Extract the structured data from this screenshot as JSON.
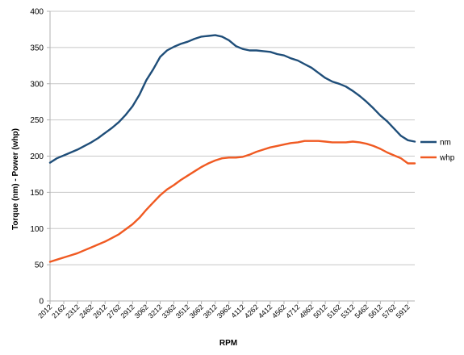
{
  "chart_data": {
    "type": "line",
    "title": "",
    "xlabel": "RPM",
    "ylabel": "Torque (nm) - Power (whp)",
    "ylim": [
      0,
      400
    ],
    "yticks": [
      0,
      50,
      100,
      150,
      200,
      250,
      300,
      350,
      400
    ],
    "grid": "horizontal",
    "legend_position": "right",
    "x_tick_labels": [
      2012,
      2162,
      2312,
      2462,
      2612,
      2762,
      2912,
      3062,
      3212,
      3362,
      3512,
      3662,
      3812,
      3962,
      4112,
      4262,
      4412,
      4562,
      4712,
      4862,
      5012,
      5162,
      5312,
      5462,
      5612,
      5762,
      5912
    ],
    "x": [
      2012,
      2087,
      2162,
      2237,
      2312,
      2387,
      2462,
      2537,
      2612,
      2687,
      2762,
      2837,
      2912,
      2987,
      3062,
      3137,
      3212,
      3287,
      3362,
      3437,
      3512,
      3587,
      3662,
      3737,
      3812,
      3887,
      3962,
      4037,
      4112,
      4187,
      4262,
      4337,
      4412,
      4487,
      4562,
      4637,
      4712,
      4787,
      4862,
      4937,
      5012,
      5087,
      5162,
      5237,
      5312,
      5387,
      5462,
      5537,
      5612,
      5687,
      5762,
      5837,
      5912,
      5987
    ],
    "series": [
      {
        "name": "nm",
        "color": "#1f4e79",
        "values": [
          191,
          197,
          201,
          205,
          209,
          214,
          219,
          225,
          232,
          239,
          247,
          257,
          269,
          285,
          305,
          320,
          337,
          346,
          351,
          355,
          358,
          362,
          365,
          366,
          367,
          365,
          360,
          352,
          348,
          346,
          346,
          345,
          344,
          341,
          339,
          335,
          332,
          327,
          322,
          315,
          308,
          303,
          300,
          296,
          290,
          283,
          275,
          266,
          256,
          248,
          238,
          228,
          222,
          220
        ]
      },
      {
        "name": "whp",
        "color": "#f05a22",
        "values": [
          54,
          57,
          60,
          63,
          66,
          70,
          74,
          78,
          82,
          87,
          92,
          99,
          106,
          115,
          126,
          136,
          146,
          154,
          160,
          167,
          173,
          179,
          185,
          190,
          194,
          197,
          198,
          198,
          199,
          202,
          206,
          209,
          212,
          214,
          216,
          218,
          219,
          221,
          221,
          221,
          220,
          219,
          219,
          219,
          220,
          219,
          217,
          214,
          210,
          205,
          201,
          197,
          190,
          190
        ]
      }
    ]
  }
}
